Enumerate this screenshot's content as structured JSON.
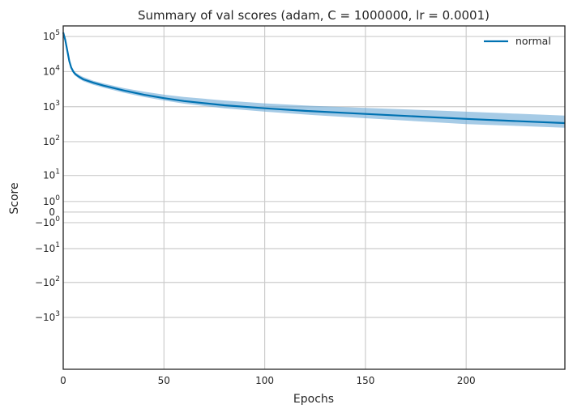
{
  "chart_data": {
    "type": "line",
    "title": "Summary of val scores (adam, C = 1000000, lr = 0.0001)",
    "xlabel": "Epochs",
    "ylabel": "Score",
    "xlim": [
      0,
      249
    ],
    "yscale": "symlog",
    "symlog_linthresh": 1,
    "ylim": [
      -30000,
      200000
    ],
    "grid": true,
    "legend_position": "top-right",
    "x_ticks": [
      0,
      50,
      100,
      150,
      200
    ],
    "y_ticks": [
      {
        "value": 100000,
        "base": "10",
        "exp": "5"
      },
      {
        "value": 10000,
        "base": "10",
        "exp": "4"
      },
      {
        "value": 1000,
        "base": "10",
        "exp": "3"
      },
      {
        "value": 100,
        "base": "10",
        "exp": "2"
      },
      {
        "value": 10,
        "base": "10",
        "exp": "1"
      },
      {
        "value": 1,
        "base": "10",
        "exp": "0"
      },
      {
        "value": 0,
        "base": "0",
        "exp": ""
      },
      {
        "value": -1,
        "base": "−10",
        "exp": "0"
      },
      {
        "value": -10,
        "base": "−10",
        "exp": "1"
      },
      {
        "value": -100,
        "base": "−10",
        "exp": "2"
      },
      {
        "value": -1000,
        "base": "−10",
        "exp": "3"
      }
    ],
    "series": [
      {
        "name": "normal",
        "color": "#0072b2",
        "band_color": "#6aa9d6",
        "x": [
          0,
          1,
          2,
          3,
          4,
          5,
          6,
          8,
          10,
          15,
          20,
          30,
          40,
          50,
          60,
          80,
          100,
          120,
          150,
          180,
          200,
          220,
          249
        ],
        "y": [
          130000,
          80000,
          40000,
          20000,
          13000,
          10000,
          8500,
          7000,
          6000,
          4800,
          4000,
          2900,
          2200,
          1750,
          1450,
          1100,
          900,
          760,
          620,
          510,
          450,
          400,
          340
        ],
        "upper": [
          135000,
          85000,
          43000,
          22000,
          14500,
          11500,
          9500,
          8000,
          7000,
          5500,
          4600,
          3400,
          2700,
          2200,
          1900,
          1500,
          1250,
          1080,
          920,
          800,
          720,
          650,
          560
        ],
        "lower": [
          125000,
          75000,
          37000,
          18000,
          11500,
          9000,
          7600,
          6200,
          5300,
          4200,
          3500,
          2500,
          1900,
          1500,
          1220,
          900,
          720,
          600,
          470,
          370,
          320,
          290,
          250
        ]
      }
    ]
  }
}
